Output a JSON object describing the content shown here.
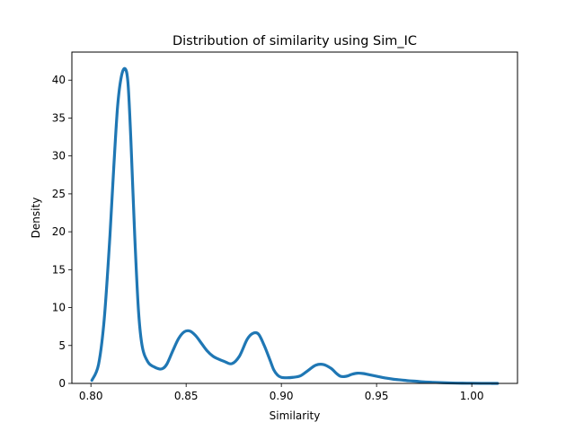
{
  "chart_data": {
    "type": "line",
    "title": "Distribution of similarity using Sim_IC",
    "xlabel": "Similarity",
    "ylabel": "Density",
    "xlim": [
      0.79,
      1.024
    ],
    "ylim": [
      0,
      43.7
    ],
    "xticks": [
      0.8,
      0.85,
      0.9,
      0.95,
      1.0
    ],
    "xtick_labels": [
      "0.80",
      "0.85",
      "0.90",
      "0.95",
      "1.00"
    ],
    "yticks": [
      0,
      5,
      10,
      15,
      20,
      25,
      30,
      35,
      40
    ],
    "ytick_labels": [
      "0",
      "5",
      "10",
      "15",
      "20",
      "25",
      "30",
      "35",
      "40"
    ],
    "grid": false,
    "legend": "none",
    "series": [
      {
        "color": "#1f77b4",
        "x": [
          0.8005,
          0.804,
          0.807,
          0.81,
          0.812,
          0.814,
          0.816,
          0.818,
          0.8195,
          0.821,
          0.823,
          0.825,
          0.827,
          0.83,
          0.833,
          0.836,
          0.838,
          0.84,
          0.843,
          0.846,
          0.849,
          0.852,
          0.855,
          0.858,
          0.861,
          0.864,
          0.867,
          0.87,
          0.874,
          0.878,
          0.882,
          0.885,
          0.888,
          0.891,
          0.894,
          0.896,
          0.898,
          0.9,
          0.903,
          0.906,
          0.91,
          0.914,
          0.918,
          0.922,
          0.926,
          0.929,
          0.931,
          0.933,
          0.935,
          0.937,
          0.94,
          0.943,
          0.947,
          0.951,
          0.955,
          0.959,
          0.963,
          0.967,
          0.971,
          0.975,
          0.98,
          0.985,
          0.99,
          0.995,
          1.0,
          1.005,
          1.01,
          1.0135
        ],
        "y": [
          0.4,
          2.5,
          8.5,
          19.5,
          28.5,
          36.5,
          40.5,
          41.5,
          39.5,
          32.0,
          19.5,
          9.5,
          4.8,
          2.8,
          2.2,
          1.9,
          2.0,
          2.6,
          4.3,
          5.9,
          6.8,
          6.9,
          6.3,
          5.3,
          4.3,
          3.6,
          3.2,
          2.9,
          2.6,
          3.6,
          5.8,
          6.6,
          6.5,
          5.0,
          3.1,
          1.8,
          1.1,
          0.8,
          0.75,
          0.8,
          1.0,
          1.7,
          2.4,
          2.5,
          2.0,
          1.3,
          0.95,
          0.9,
          1.0,
          1.2,
          1.35,
          1.3,
          1.1,
          0.9,
          0.7,
          0.55,
          0.45,
          0.35,
          0.28,
          0.2,
          0.14,
          0.09,
          0.05,
          0.03,
          0.02,
          0.01,
          0.005,
          0.0
        ]
      }
    ]
  }
}
